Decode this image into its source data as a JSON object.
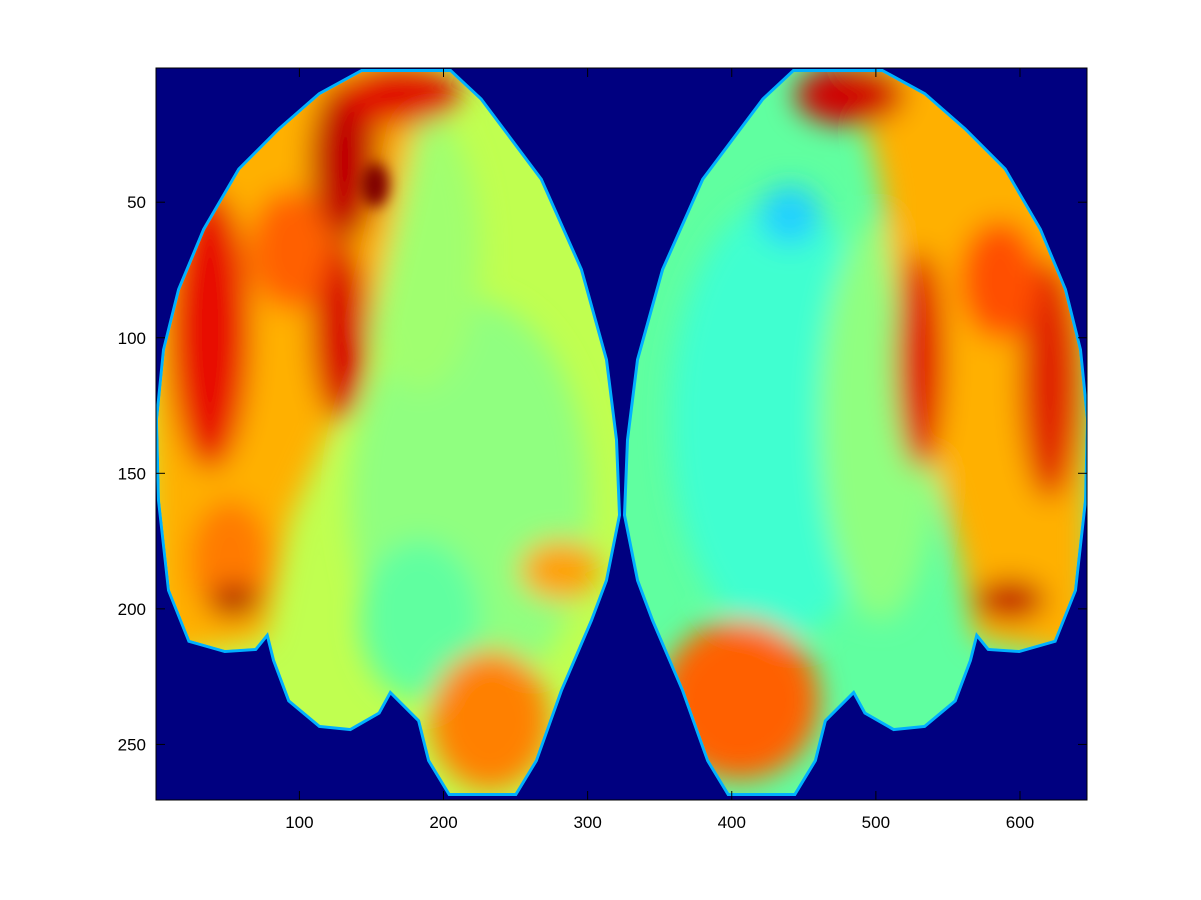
{
  "chart_data": {
    "type": "image",
    "colormap": "jet",
    "y_direction": "reverse",
    "xlim": [
      0.5,
      646.5
    ],
    "xticks": [
      100,
      200,
      300,
      400,
      500,
      600
    ],
    "ylim": [
      0.5,
      270.5
    ],
    "yticks": [
      50,
      100,
      150,
      200,
      250
    ],
    "background_color": "#000080"
  }
}
